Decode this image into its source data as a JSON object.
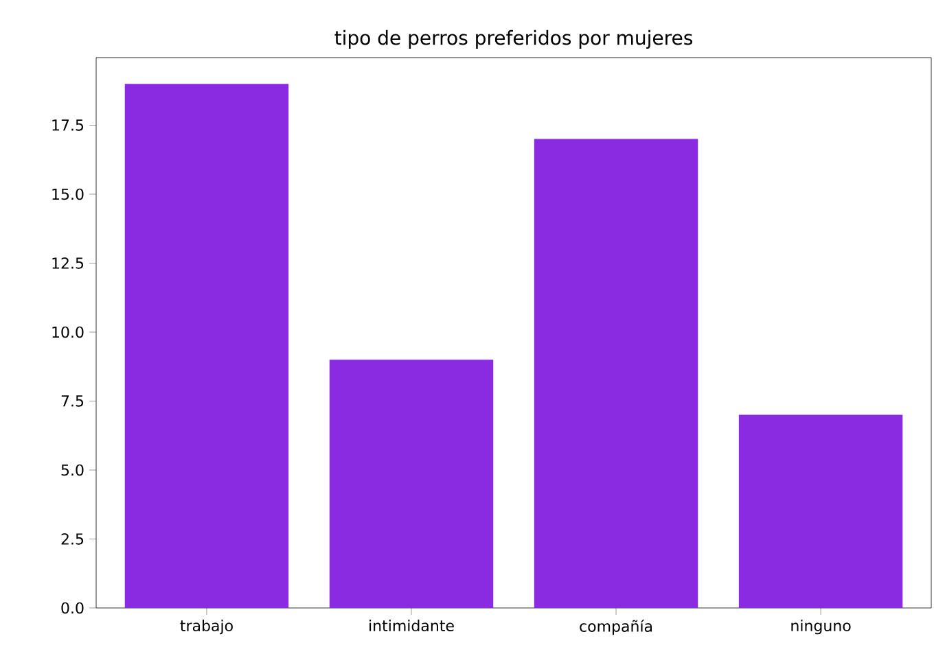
{
  "chart_data": {
    "type": "bar",
    "title": "tipo de perros preferidos por mujeres",
    "categories": [
      "trabajo",
      "intimidante",
      "compañía",
      "ninguno"
    ],
    "values": [
      19,
      9,
      17,
      7
    ],
    "color": "#8a2be2",
    "ylim": [
      0,
      19.95
    ],
    "yticks": [
      {
        "value": 0,
        "label": "0.0"
      },
      {
        "value": 2.5,
        "label": "2.5"
      },
      {
        "value": 5,
        "label": "5.0"
      },
      {
        "value": 7.5,
        "label": "7.5"
      },
      {
        "value": 10,
        "label": "10.0"
      },
      {
        "value": 12.5,
        "label": "12.5"
      },
      {
        "value": 15,
        "label": "15.0"
      },
      {
        "value": 17.5,
        "label": "17.5"
      }
    ]
  }
}
